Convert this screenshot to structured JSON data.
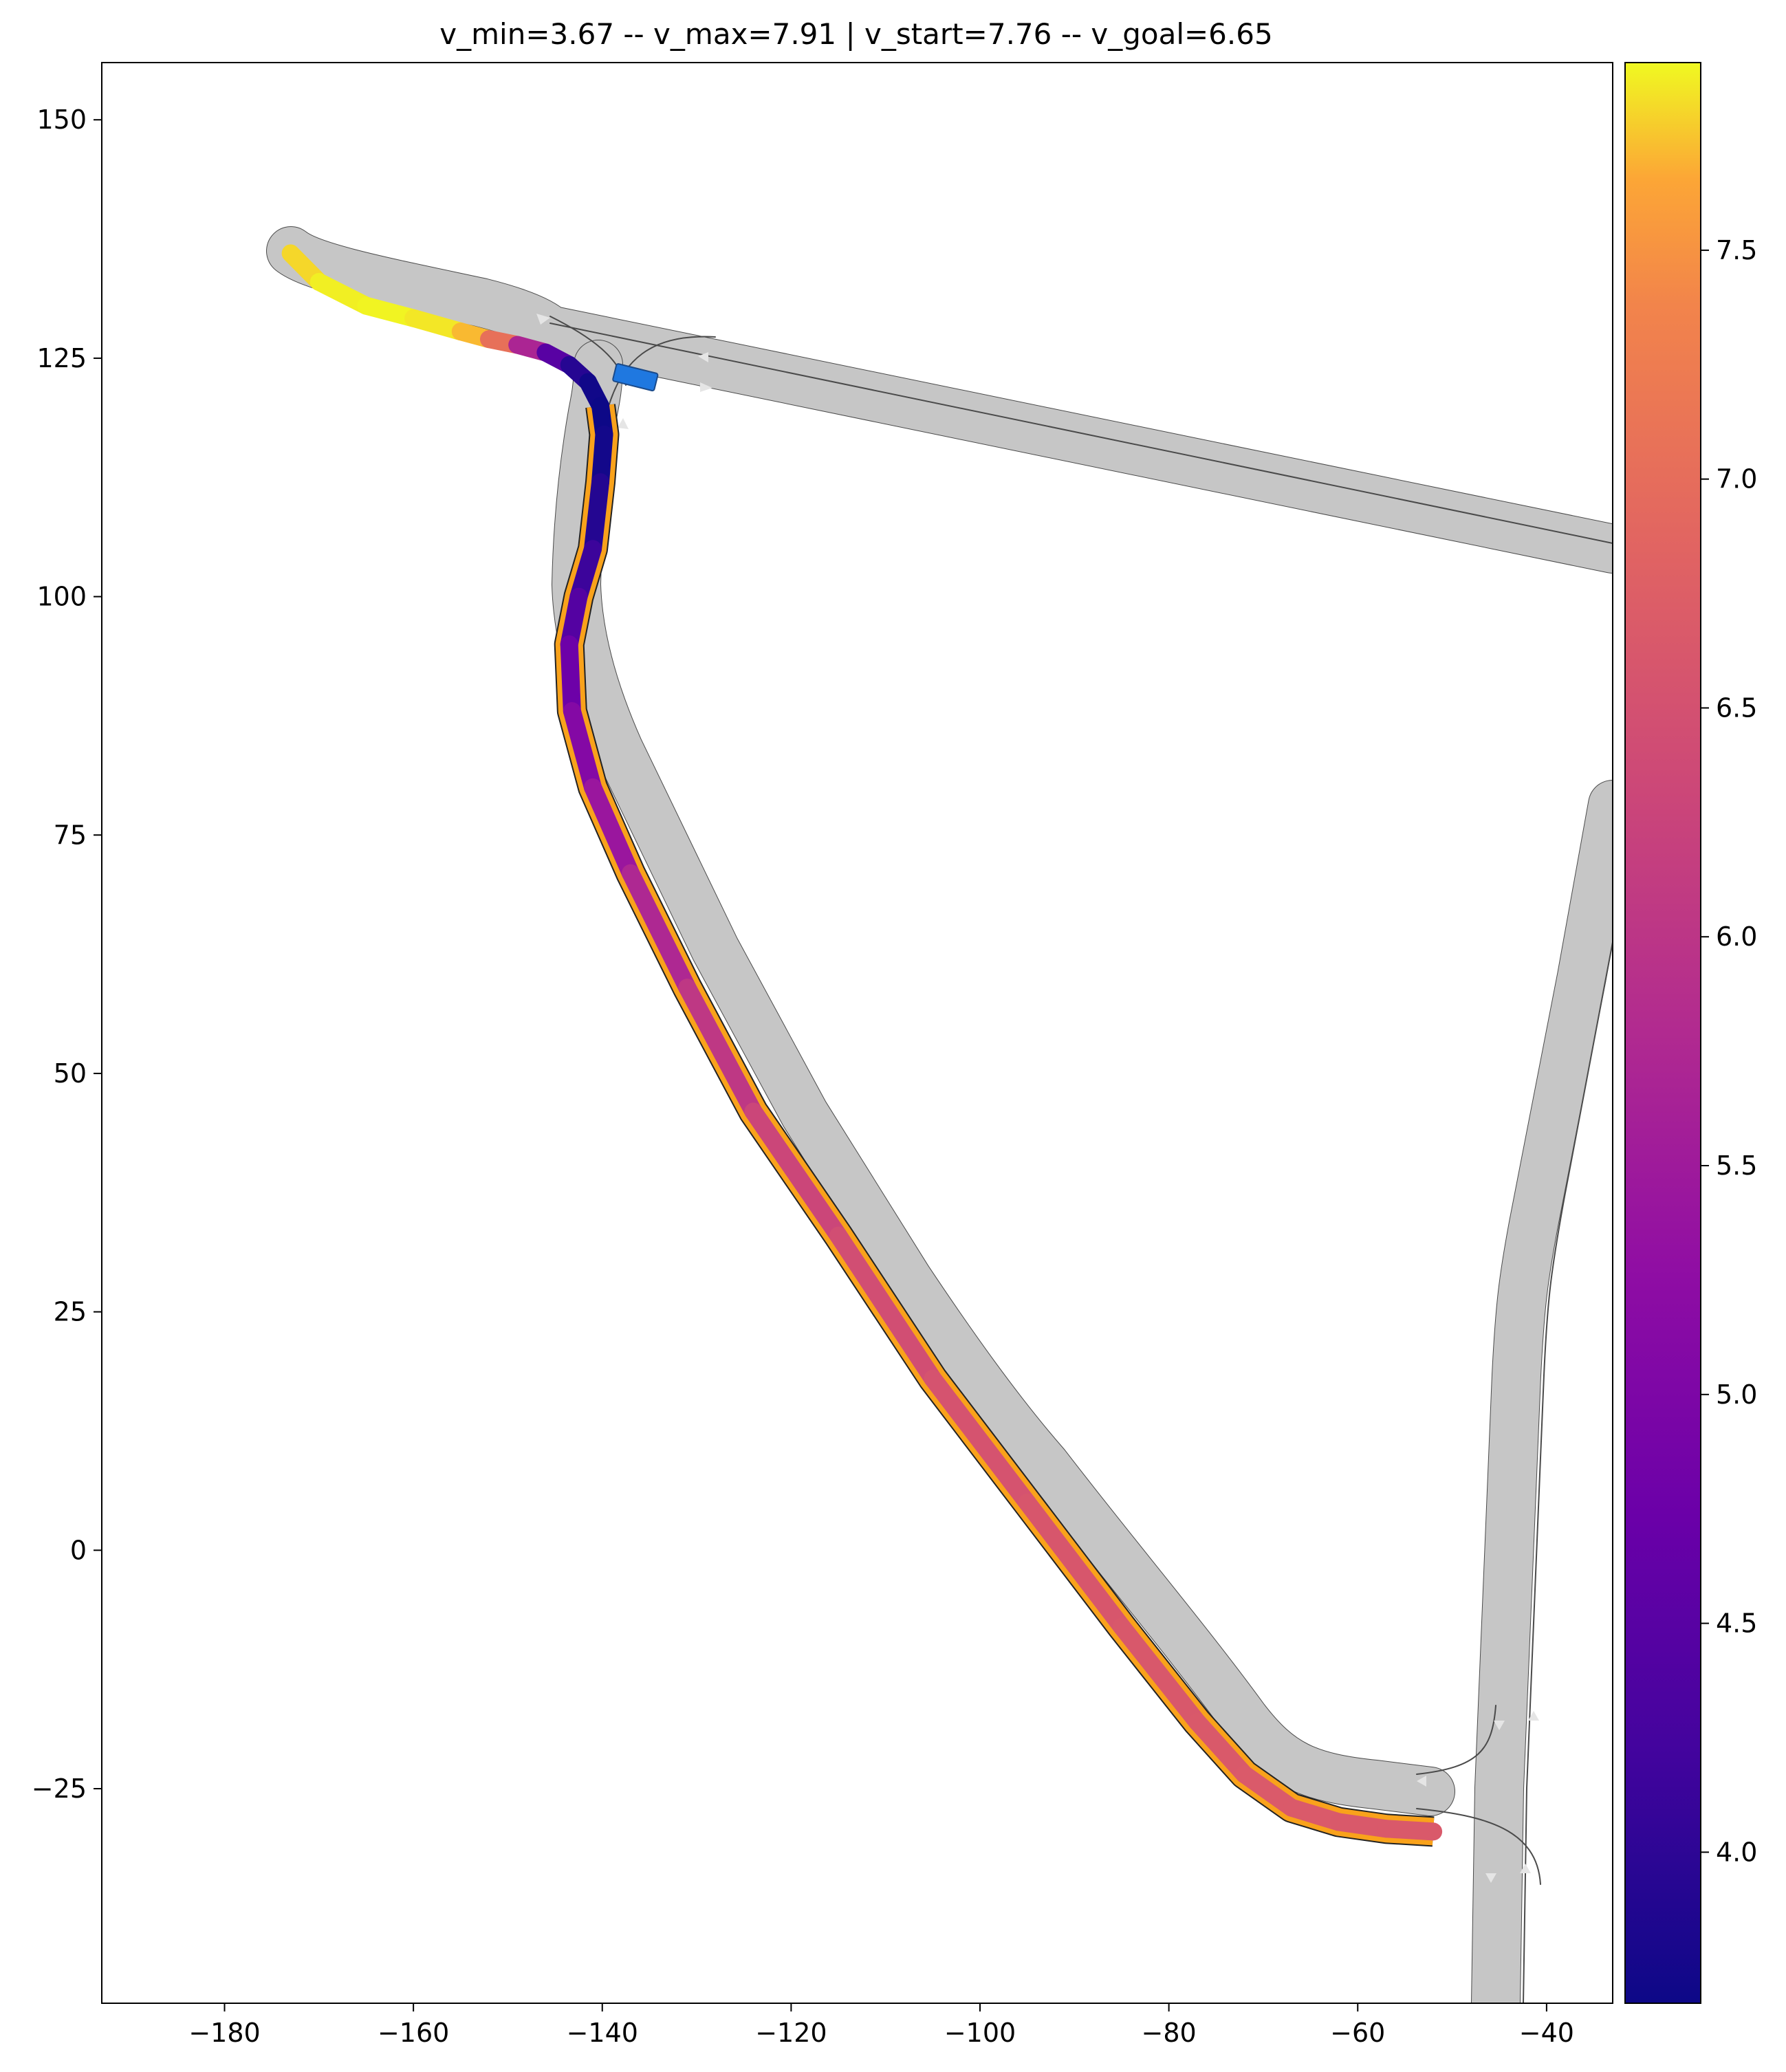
{
  "chart_data": {
    "type": "line",
    "title": "v_min=3.67  --  v_max=7.91 | v_start=7.76  --  v_goal=6.65",
    "xlabel": "",
    "ylabel": "",
    "xlim": [
      -193,
      -33
    ],
    "ylim": [
      -47.5,
      156
    ],
    "x_ticks": [
      -180,
      -160,
      -140,
      -120,
      -100,
      -80,
      -60,
      -40
    ],
    "x_tick_labels": [
      "−180",
      "−160",
      "−140",
      "−120",
      "−100",
      "−80",
      "−60",
      "−40"
    ],
    "y_ticks": [
      150,
      125,
      100,
      75,
      50,
      25,
      0,
      -25
    ],
    "y_tick_labels": [
      "150",
      "125",
      "100",
      "75",
      "50",
      "25",
      "0",
      "−25"
    ],
    "grid": false,
    "colormap": "plasma",
    "colorbar": {
      "vmin": 3.67,
      "vmax": 7.91,
      "ticks": [
        7.5,
        7.0,
        6.5,
        6.0,
        5.5,
        5.0,
        4.5,
        4.0
      ],
      "tick_labels": [
        "7.5",
        "7.0",
        "6.5",
        "6.0",
        "5.5",
        "5.0",
        "4.5",
        "4.0"
      ]
    },
    "trajectory": {
      "x": [
        -173.0,
        -170.0,
        -165.0,
        -160.0,
        -155.0,
        -152.0,
        -149.0,
        -146.0,
        -143.5,
        -141.5,
        -140.2,
        -139.8,
        -140.2,
        -141.0,
        -142.5,
        -143.5,
        -143.2,
        -141.0,
        -137.0,
        -131.0,
        -124.0,
        -115.0,
        -105.0,
        -95.0,
        -85.0,
        -77.0,
        -72.0,
        -67.0,
        -62.0,
        -57.0,
        -52.0
      ],
      "y": [
        136.0,
        133.0,
        130.5,
        129.2,
        127.8,
        127.0,
        126.4,
        125.6,
        124.3,
        122.5,
        120.0,
        117.0,
        112.0,
        105.0,
        100.0,
        95.0,
        88.0,
        80.0,
        71.0,
        59.0,
        46.0,
        33.0,
        18.0,
        5.0,
        -8.0,
        -18.0,
        -23.5,
        -27.0,
        -28.5,
        -29.2,
        -29.5
      ],
      "speed": [
        7.76,
        7.85,
        7.91,
        7.88,
        7.83,
        7.6,
        6.5,
        4.9,
        4.1,
        3.75,
        3.67,
        3.67,
        3.8,
        4.0,
        4.3,
        4.6,
        4.95,
        5.25,
        5.6,
        5.9,
        6.2,
        6.4,
        6.5,
        6.58,
        6.62,
        6.65,
        6.66,
        6.67,
        6.66,
        6.65,
        6.65
      ]
    },
    "vehicle": {
      "x": -136.5,
      "y": 123.0,
      "color": "#1f78e0"
    },
    "road_color": "#c6c6c6",
    "band_color": "#f9a21b"
  }
}
